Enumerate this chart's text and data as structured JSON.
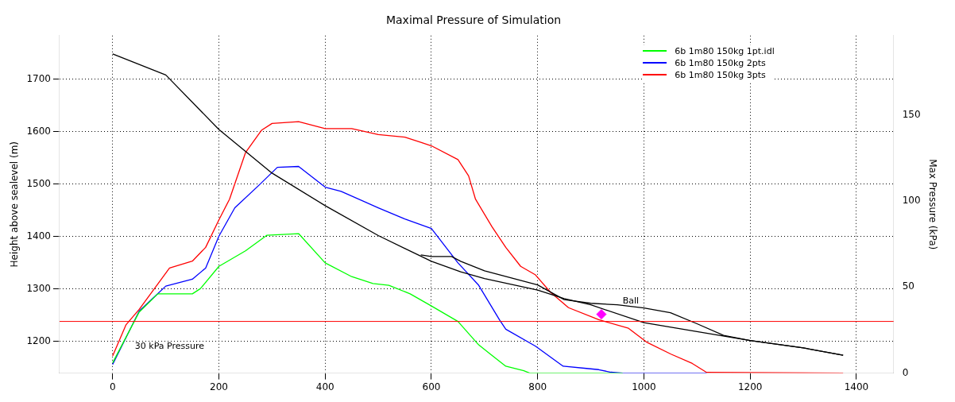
{
  "chart_data": {
    "type": "line",
    "title": "Maximal Pressure of Simulation",
    "ylabel": "Height above sealevel (m)",
    "y2label": "Max Pressure (kPa)",
    "xlim": [
      -100,
      1470
    ],
    "xticks": [
      0,
      200,
      400,
      600,
      800,
      1000,
      1200,
      1400
    ],
    "ylim": [
      1140,
      1783
    ],
    "yticks": [
      1200,
      1300,
      1400,
      1500,
      1600,
      1700
    ],
    "y2lim": [
      0,
      196
    ],
    "y2ticks": [
      0,
      50,
      100,
      150
    ],
    "grid": true,
    "legend": "top right",
    "line_style": "solid",
    "annotations": [
      {
        "text": "Ball",
        "x": 960,
        "y": 1269
      }
    ],
    "ref_lines": [
      {
        "axis": "y2",
        "value": 30,
        "label": "30 kPa Pressure",
        "color": "#ff0000"
      }
    ],
    "series": [
      {
        "axis": "y",
        "color": "#000000",
        "x": [
          0,
          100,
          200,
          300,
          400,
          500,
          600,
          655,
          700,
          800,
          850,
          900,
          1000,
          1100,
          1200,
          1300,
          1375
        ],
        "values": [
          1748,
          1708,
          1604,
          1521,
          1459,
          1402,
          1353,
          1333,
          1320,
          1298,
          1282,
          1270,
          1236,
          1219,
          1202,
          1188,
          1174
        ]
      },
      {
        "axis": "y",
        "color": "#000000",
        "x": [
          580,
          600,
          638,
          655,
          700,
          800,
          850,
          900,
          950,
          1000,
          1050,
          1100,
          1150,
          1200,
          1300,
          1375
        ],
        "values": [
          1365,
          1362,
          1362,
          1353,
          1335,
          1308,
          1280,
          1273,
          1270,
          1264,
          1255,
          1234,
          1212,
          1202,
          1188,
          1174
        ]
      },
      {
        "axis": "y2",
        "name": "6b 1m80 150kg 1pt.idl",
        "color": "#00ff00",
        "x": [
          0,
          50,
          85,
          150,
          165,
          200,
          250,
          290,
          350,
          400,
          450,
          490,
          520,
          560,
          600,
          650,
          689,
          711,
          740,
          774,
          785,
          960
        ],
        "values": [
          6,
          35.5,
          46,
          46,
          49,
          62,
          71,
          80,
          81,
          64,
          56,
          52,
          51,
          46,
          39,
          30,
          16.4,
          11,
          4,
          1.4,
          0,
          0
        ]
      },
      {
        "axis": "y2",
        "name": "6b 1m80 150kg 2pts",
        "color": "#0000ff",
        "x": [
          0,
          50,
          100,
          150,
          175,
          200,
          230,
          275,
          310,
          350,
          400,
          430,
          500,
          550,
          600,
          650,
          689,
          728,
          740,
          796,
          848,
          892,
          915,
          938,
          960,
          1118
        ],
        "values": [
          5,
          36,
          50.5,
          54.5,
          61,
          79.5,
          96,
          109,
          119.5,
          120,
          108,
          105.5,
          96,
          89.5,
          84,
          64,
          51,
          31,
          25.5,
          15.6,
          4,
          2.7,
          2,
          0.5,
          0,
          0
        ]
      },
      {
        "axis": "y2",
        "name": "6b 1m80 150kg 3pts",
        "color": "#ff0000",
        "x": [
          0,
          25,
          50,
          107,
          150,
          175,
          200,
          220,
          250,
          280,
          300,
          350,
          400,
          450,
          500,
          550,
          580,
          600,
          650,
          670,
          683,
          714,
          740,
          768,
          796,
          824,
          858,
          915,
          971,
          1005,
          1051,
          1091,
          1118,
          1375
        ],
        "values": [
          10,
          28,
          37,
          61,
          65,
          73,
          89,
          101,
          128,
          141,
          145,
          146,
          142,
          142,
          138.5,
          137,
          134,
          132,
          124,
          114.5,
          101,
          85,
          73,
          62,
          57,
          47,
          38,
          31,
          26,
          18,
          11,
          5.6,
          0.4,
          0
        ]
      },
      {
        "type": "scatter",
        "axis": "y",
        "marker": "diamond",
        "color": "#ff00ff",
        "x": [
          920
        ],
        "values": [
          1252
        ]
      }
    ]
  }
}
